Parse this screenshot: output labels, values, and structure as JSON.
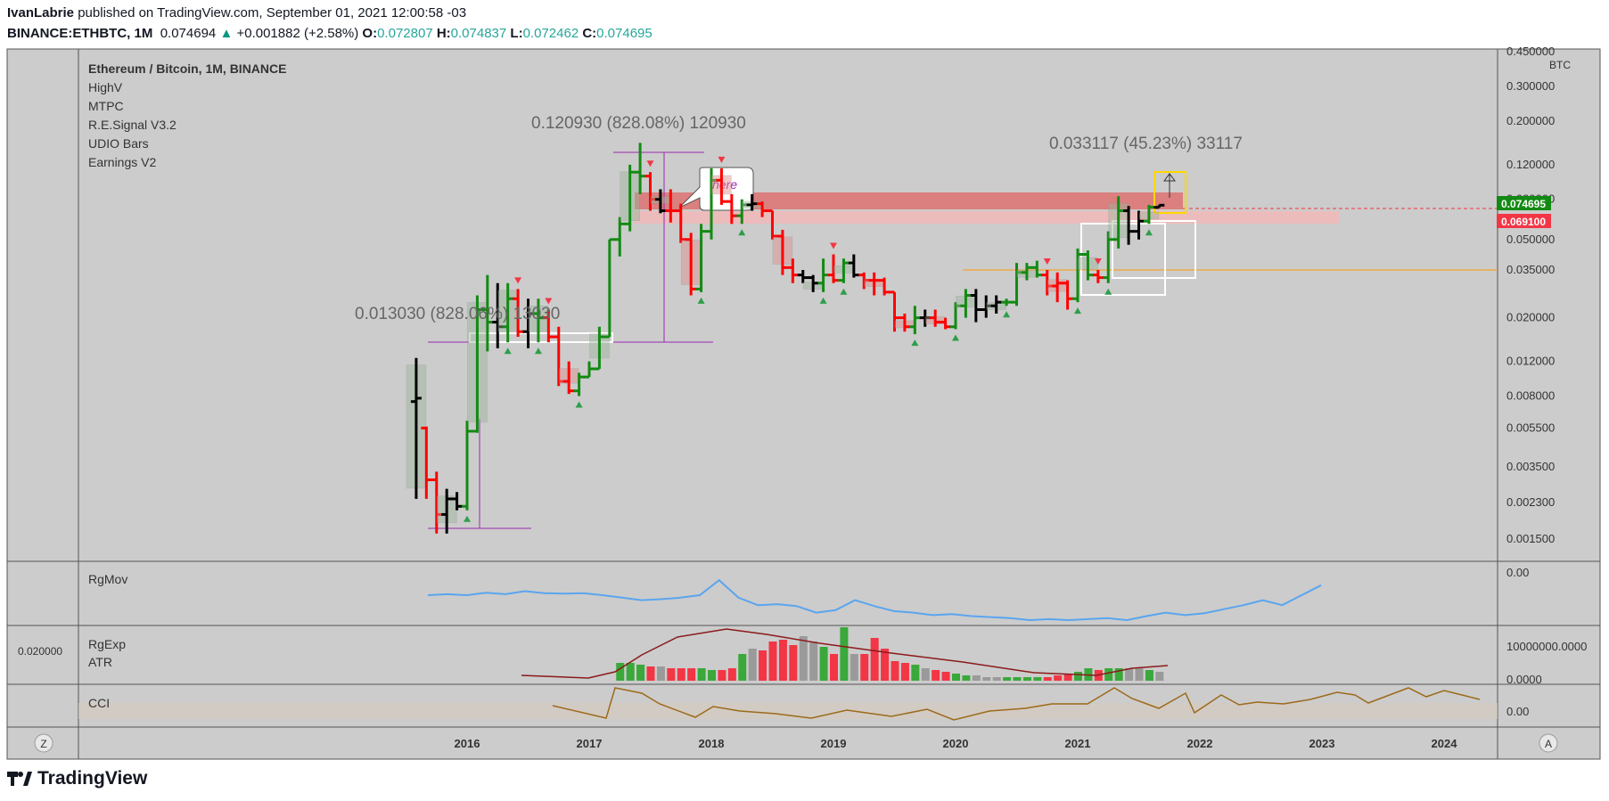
{
  "header": {
    "publisher": "IvanLabrie",
    "published_text": "published on TradingView.com, September 01, 2021 12:00:58 -03",
    "symbol": "BINANCE:ETHBTC, 1M",
    "last": "0.074694",
    "change_arrow": "▲",
    "change": "+0.001882 (+2.58%)",
    "open_label": "O:",
    "open": "0.072807",
    "high_label": "H:",
    "high": "0.074837",
    "low_label": "L:",
    "low": "0.072462",
    "close_label": "C:",
    "close": "0.074695"
  },
  "legend": {
    "title": "Ethereum / Bitcoin, 1M, BINANCE",
    "indicators": [
      "HighV",
      "MTPC",
      "R.E.Signal V3.2",
      "UDIO Bars",
      "Earnings V2"
    ]
  },
  "annotations": {
    "measure_top": "0.120930 (828.08%) 120930",
    "measure_bottom": "0.013030 (828.06%) 13030",
    "measure_recent": "0.033117 (45.23%) 33117",
    "callout": "here"
  },
  "price_axis": {
    "currency": "BTC",
    "ticks": [
      "0.450000",
      "0.300000",
      "0.200000",
      "0.120000",
      "0.080000",
      "0.050000",
      "0.035000",
      "0.020000",
      "0.012000",
      "0.008000",
      "0.005500",
      "0.003500",
      "0.002300",
      "0.001500"
    ],
    "last_price_label": "0.074695",
    "level_label": "0.069100"
  },
  "panes": {
    "rgmov": {
      "name": "RgMov",
      "tick": "0.00"
    },
    "rgexp": {
      "name": "RgExp",
      "name2": "ATR",
      "left_label": "0.020000",
      "tick_top": "10000000.0000",
      "tick_bottom": "0.0000"
    },
    "cci": {
      "name": "CCI",
      "tick": "0.00"
    }
  },
  "time_axis": {
    "years": [
      "2016",
      "2017",
      "2018",
      "2019",
      "2020",
      "2021",
      "2022",
      "2023",
      "2024"
    ],
    "left_btn": "Z",
    "right_btn": "A"
  },
  "colors": {
    "up": "#138a13",
    "down": "#ff0000",
    "neutral": "#000000",
    "background": "#cccccc",
    "accent_green": "#1e9e1e",
    "accent_red": "#f23645",
    "rgmov": "#5aa5ef",
    "cci": "#9c6a1a",
    "atr": "#8b1a1a"
  },
  "footer": {
    "brand": "TradingView"
  },
  "chart_data": {
    "type": "bar",
    "scale": "log",
    "ylim": [
      0.0013,
      0.45
    ],
    "xlabel": "",
    "ylabel": "",
    "series": [
      {
        "values": [
          {
            "t": "2015-08",
            "o": 0.0075,
            "h": 0.0125,
            "l": 0.0024,
            "c": 0.0078,
            "col": "k"
          },
          {
            "t": "2015-09",
            "o": 0.0055,
            "h": 0.0056,
            "l": 0.0024,
            "c": 0.003,
            "col": "r"
          },
          {
            "t": "2015-10",
            "o": 0.003,
            "h": 0.0033,
            "l": 0.0016,
            "c": 0.002,
            "col": "r"
          },
          {
            "t": "2015-11",
            "o": 0.002,
            "h": 0.0027,
            "l": 0.0016,
            "c": 0.0024,
            "col": "k"
          },
          {
            "t": "2015-12",
            "o": 0.0024,
            "h": 0.0026,
            "l": 0.0021,
            "c": 0.0022,
            "col": "k"
          },
          {
            "t": "2016-01",
            "o": 0.0022,
            "h": 0.006,
            "l": 0.0021,
            "c": 0.0053,
            "col": "g"
          },
          {
            "t": "2016-02",
            "o": 0.0053,
            "h": 0.026,
            "l": 0.0052,
            "c": 0.022,
            "col": "g"
          },
          {
            "t": "2016-03",
            "o": 0.022,
            "h": 0.033,
            "l": 0.0135,
            "c": 0.019,
            "col": "g"
          },
          {
            "t": "2016-04",
            "o": 0.019,
            "h": 0.03,
            "l": 0.014,
            "c": 0.018,
            "col": "k"
          },
          {
            "t": "2016-05",
            "o": 0.018,
            "h": 0.03,
            "l": 0.015,
            "c": 0.025,
            "col": "g"
          },
          {
            "t": "2016-06",
            "o": 0.025,
            "h": 0.028,
            "l": 0.016,
            "c": 0.017,
            "col": "r"
          },
          {
            "t": "2016-07",
            "o": 0.017,
            "h": 0.025,
            "l": 0.014,
            "c": 0.021,
            "col": "k"
          },
          {
            "t": "2016-08",
            "o": 0.021,
            "h": 0.025,
            "l": 0.015,
            "c": 0.02,
            "col": "g"
          },
          {
            "t": "2016-09",
            "o": 0.02,
            "h": 0.022,
            "l": 0.015,
            "c": 0.016,
            "col": "r"
          },
          {
            "t": "2016-10",
            "o": 0.016,
            "h": 0.018,
            "l": 0.009,
            "c": 0.0095,
            "col": "r"
          },
          {
            "t": "2016-11",
            "o": 0.0095,
            "h": 0.012,
            "l": 0.0082,
            "c": 0.0085,
            "col": "r"
          },
          {
            "t": "2016-12",
            "o": 0.0085,
            "h": 0.0105,
            "l": 0.008,
            "c": 0.01,
            "col": "g"
          },
          {
            "t": "2017-01",
            "o": 0.01,
            "h": 0.012,
            "l": 0.01,
            "c": 0.011,
            "col": "g"
          },
          {
            "t": "2017-02",
            "o": 0.011,
            "h": 0.018,
            "l": 0.011,
            "c": 0.016,
            "col": "g"
          },
          {
            "t": "2017-03",
            "o": 0.016,
            "h": 0.05,
            "l": 0.016,
            "c": 0.05,
            "col": "g"
          },
          {
            "t": "2017-04",
            "o": 0.05,
            "h": 0.065,
            "l": 0.041,
            "c": 0.06,
            "col": "g"
          },
          {
            "t": "2017-05",
            "o": 0.06,
            "h": 0.12,
            "l": 0.055,
            "c": 0.11,
            "col": "g"
          },
          {
            "t": "2017-06",
            "o": 0.11,
            "h": 0.155,
            "l": 0.085,
            "c": 0.105,
            "col": "g"
          },
          {
            "t": "2017-07",
            "o": 0.105,
            "h": 0.11,
            "l": 0.07,
            "c": 0.08,
            "col": "r"
          },
          {
            "t": "2017-08",
            "o": 0.08,
            "h": 0.09,
            "l": 0.068,
            "c": 0.07,
            "col": "k"
          },
          {
            "t": "2017-09",
            "o": 0.07,
            "h": 0.09,
            "l": 0.061,
            "c": 0.07,
            "col": "r"
          },
          {
            "t": "2017-10",
            "o": 0.07,
            "h": 0.076,
            "l": 0.048,
            "c": 0.05,
            "col": "r"
          },
          {
            "t": "2017-11",
            "o": 0.05,
            "h": 0.054,
            "l": 0.026,
            "c": 0.028,
            "col": "r"
          },
          {
            "t": "2017-12",
            "o": 0.028,
            "h": 0.06,
            "l": 0.027,
            "c": 0.055,
            "col": "g"
          },
          {
            "t": "2018-01",
            "o": 0.055,
            "h": 0.115,
            "l": 0.05,
            "c": 0.1,
            "col": "g"
          },
          {
            "t": "2018-02",
            "o": 0.1,
            "h": 0.115,
            "l": 0.075,
            "c": 0.078,
            "col": "r"
          },
          {
            "t": "2018-03",
            "o": 0.078,
            "h": 0.085,
            "l": 0.06,
            "c": 0.066,
            "col": "r"
          },
          {
            "t": "2018-04",
            "o": 0.066,
            "h": 0.08,
            "l": 0.06,
            "c": 0.075,
            "col": "g"
          },
          {
            "t": "2018-05",
            "o": 0.075,
            "h": 0.085,
            "l": 0.07,
            "c": 0.076,
            "col": "k"
          },
          {
            "t": "2018-06",
            "o": 0.076,
            "h": 0.078,
            "l": 0.065,
            "c": 0.07,
            "col": "r"
          },
          {
            "t": "2018-07",
            "o": 0.07,
            "h": 0.07,
            "l": 0.05,
            "c": 0.052,
            "col": "r"
          },
          {
            "t": "2018-08",
            "o": 0.052,
            "h": 0.056,
            "l": 0.033,
            "c": 0.036,
            "col": "r"
          },
          {
            "t": "2018-09",
            "o": 0.036,
            "h": 0.04,
            "l": 0.03,
            "c": 0.033,
            "col": "r"
          },
          {
            "t": "2018-10",
            "o": 0.033,
            "h": 0.035,
            "l": 0.03,
            "c": 0.032,
            "col": "k"
          },
          {
            "t": "2018-11",
            "o": 0.032,
            "h": 0.033,
            "l": 0.027,
            "c": 0.03,
            "col": "k"
          },
          {
            "t": "2018-12",
            "o": 0.03,
            "h": 0.04,
            "l": 0.027,
            "c": 0.033,
            "col": "g"
          },
          {
            "t": "2019-01",
            "o": 0.033,
            "h": 0.042,
            "l": 0.03,
            "c": 0.031,
            "col": "r"
          },
          {
            "t": "2019-02",
            "o": 0.031,
            "h": 0.04,
            "l": 0.03,
            "c": 0.038,
            "col": "g"
          },
          {
            "t": "2019-03",
            "o": 0.038,
            "h": 0.042,
            "l": 0.032,
            "c": 0.033,
            "col": "k"
          },
          {
            "t": "2019-04",
            "o": 0.033,
            "h": 0.034,
            "l": 0.028,
            "c": 0.031,
            "col": "r"
          },
          {
            "t": "2019-05",
            "o": 0.031,
            "h": 0.034,
            "l": 0.026,
            "c": 0.031,
            "col": "r"
          },
          {
            "t": "2019-06",
            "o": 0.031,
            "h": 0.032,
            "l": 0.026,
            "c": 0.027,
            "col": "r"
          },
          {
            "t": "2019-07",
            "o": 0.027,
            "h": 0.027,
            "l": 0.017,
            "c": 0.02,
            "col": "r"
          },
          {
            "t": "2019-08",
            "o": 0.02,
            "h": 0.021,
            "l": 0.017,
            "c": 0.018,
            "col": "r"
          },
          {
            "t": "2019-09",
            "o": 0.018,
            "h": 0.023,
            "l": 0.0165,
            "c": 0.02,
            "col": "g"
          },
          {
            "t": "2019-10",
            "o": 0.02,
            "h": 0.022,
            "l": 0.018,
            "c": 0.02,
            "col": "k"
          },
          {
            "t": "2019-11",
            "o": 0.02,
            "h": 0.022,
            "l": 0.018,
            "c": 0.019,
            "col": "r"
          },
          {
            "t": "2019-12",
            "o": 0.019,
            "h": 0.02,
            "l": 0.0175,
            "c": 0.018,
            "col": "r"
          },
          {
            "t": "2020-01",
            "o": 0.018,
            "h": 0.024,
            "l": 0.0175,
            "c": 0.023,
            "col": "g"
          },
          {
            "t": "2020-02",
            "o": 0.023,
            "h": 0.028,
            "l": 0.02,
            "c": 0.026,
            "col": "g"
          },
          {
            "t": "2020-03",
            "o": 0.026,
            "h": 0.028,
            "l": 0.019,
            "c": 0.022,
            "col": "k"
          },
          {
            "t": "2020-04",
            "o": 0.022,
            "h": 0.026,
            "l": 0.02,
            "c": 0.023,
            "col": "k"
          },
          {
            "t": "2020-05",
            "o": 0.023,
            "h": 0.026,
            "l": 0.021,
            "c": 0.024,
            "col": "k"
          },
          {
            "t": "2020-06",
            "o": 0.024,
            "h": 0.025,
            "l": 0.023,
            "c": 0.024,
            "col": "g"
          },
          {
            "t": "2020-07",
            "o": 0.024,
            "h": 0.038,
            "l": 0.023,
            "c": 0.034,
            "col": "g"
          },
          {
            "t": "2020-08",
            "o": 0.034,
            "h": 0.038,
            "l": 0.031,
            "c": 0.036,
            "col": "g"
          },
          {
            "t": "2020-09",
            "o": 0.036,
            "h": 0.039,
            "l": 0.032,
            "c": 0.033,
            "col": "g"
          },
          {
            "t": "2020-10",
            "o": 0.033,
            "h": 0.035,
            "l": 0.026,
            "c": 0.029,
            "col": "r"
          },
          {
            "t": "2020-11",
            "o": 0.029,
            "h": 0.034,
            "l": 0.024,
            "c": 0.03,
            "col": "r"
          },
          {
            "t": "2020-12",
            "o": 0.03,
            "h": 0.031,
            "l": 0.022,
            "c": 0.025,
            "col": "r"
          },
          {
            "t": "2021-01",
            "o": 0.025,
            "h": 0.045,
            "l": 0.024,
            "c": 0.042,
            "col": "g"
          },
          {
            "t": "2021-02",
            "o": 0.042,
            "h": 0.044,
            "l": 0.031,
            "c": 0.033,
            "col": "g"
          },
          {
            "t": "2021-03",
            "o": 0.033,
            "h": 0.035,
            "l": 0.03,
            "c": 0.032,
            "col": "r"
          },
          {
            "t": "2021-04",
            "o": 0.032,
            "h": 0.055,
            "l": 0.03,
            "c": 0.05,
            "col": "g"
          },
          {
            "t": "2021-05",
            "o": 0.05,
            "h": 0.083,
            "l": 0.045,
            "c": 0.07,
            "col": "g"
          },
          {
            "t": "2021-06",
            "o": 0.07,
            "h": 0.074,
            "l": 0.047,
            "c": 0.055,
            "col": "k"
          },
          {
            "t": "2021-07",
            "o": 0.055,
            "h": 0.07,
            "l": 0.05,
            "c": 0.062,
            "col": "k"
          },
          {
            "t": "2021-08",
            "o": 0.062,
            "h": 0.075,
            "l": 0.06,
            "c": 0.073,
            "col": "g"
          },
          {
            "t": "2021-09",
            "o": 0.0728,
            "h": 0.0748,
            "l": 0.0725,
            "c": 0.0747,
            "col": "k"
          }
        ]
      }
    ]
  }
}
